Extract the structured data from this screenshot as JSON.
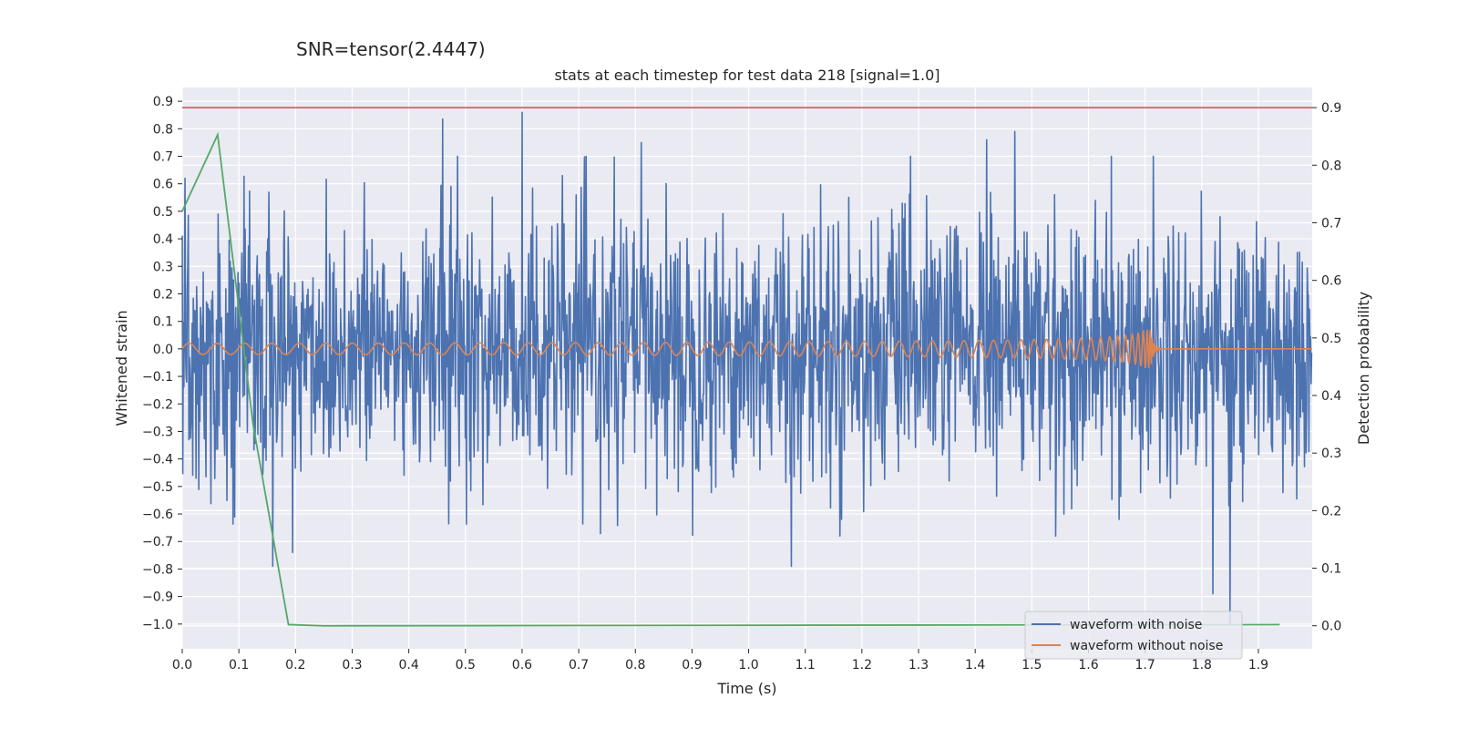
{
  "colors": {
    "axes_bg": "#eaeaf2",
    "grid": "#ffffff",
    "noisy": "#4c72b0",
    "clean": "#dd8452",
    "prob": "#55a868",
    "threshold": "#c44e52",
    "text": "#262626"
  },
  "chart_data": {
    "type": "line",
    "suptitle": "SNR=tensor(2.4447)",
    "title": "stats at each timestep for test data 218 [signal=1.0]",
    "xlabel": "Time (s)",
    "ylabel": "Whitened strain",
    "ylabel_right": "Detection probability",
    "xlim": [
      0.0,
      1.995
    ],
    "ylim": [
      -1.09,
      0.95
    ],
    "ylim_right": [
      -0.04,
      0.935
    ],
    "x_ticks": [
      "0.0",
      "0.1",
      "0.2",
      "0.3",
      "0.4",
      "0.5",
      "0.6",
      "0.7",
      "0.8",
      "0.9",
      "1.0",
      "1.1",
      "1.2",
      "1.3",
      "1.4",
      "1.5",
      "1.6",
      "1.7",
      "1.8",
      "1.9"
    ],
    "y_ticks": [
      "0.9",
      "0.8",
      "0.7",
      "0.6",
      "0.5",
      "0.4",
      "0.3",
      "0.2",
      "0.1",
      "0.0",
      "−0.1",
      "−0.2",
      "−0.3",
      "−0.4",
      "−0.5",
      "−0.6",
      "−0.7",
      "−0.8",
      "−0.9",
      "−1.0"
    ],
    "y_ticks_right": [
      "0.9",
      "0.8",
      "0.7",
      "0.6",
      "0.5",
      "0.4",
      "0.3",
      "0.2",
      "0.1",
      "0.0"
    ],
    "grid": true,
    "legend_placement": "lower-right",
    "series": [
      {
        "name": "waveform with noise",
        "axis": "left",
        "description_values": "dense noise between about -0.7 and 0.85, peaks: 0.835 at 0.46 s, 0.86 at 0.60 s, -0.79 at 0.16 s, -0.79 at 1.075 s, -0.89 at 1.82 s, -1.0 at 1.85 s",
        "x_range": [
          0.0,
          1.995
        ],
        "highlights": [
          {
            "x": 0.005,
            "y": 0.62
          },
          {
            "x": 0.063,
            "y": 0.49
          },
          {
            "x": 0.16,
            "y": -0.79
          },
          {
            "x": 0.195,
            "y": -0.74
          },
          {
            "x": 0.46,
            "y": 0.835
          },
          {
            "x": 0.6,
            "y": 0.86
          },
          {
            "x": 0.81,
            "y": 0.75
          },
          {
            "x": 1.075,
            "y": -0.79
          },
          {
            "x": 1.42,
            "y": 0.76
          },
          {
            "x": 1.47,
            "y": 0.79
          },
          {
            "x": 1.82,
            "y": -0.89
          },
          {
            "x": 1.85,
            "y": -1.0
          }
        ]
      },
      {
        "name": "waveform without noise",
        "axis": "left",
        "description_values": "chirp oscillation around 0 with amplitude ~0.02 growing to ~0.07 at merger near 1.71 s, flat afterwards",
        "merger_time": 1.71,
        "peak_amplitude": 0.07
      },
      {
        "axis": "right",
        "x": [
          0.0,
          0.0625,
          0.125,
          0.1875,
          0.25,
          1.9375
        ],
        "y": [
          0.72,
          0.853,
          0.35,
          0.002,
          0.0,
          0.002
        ]
      },
      {
        "axis": "right",
        "type": "hline",
        "y": 0.9
      }
    ],
    "legend": [
      "waveform with noise",
      "waveform without noise"
    ]
  }
}
